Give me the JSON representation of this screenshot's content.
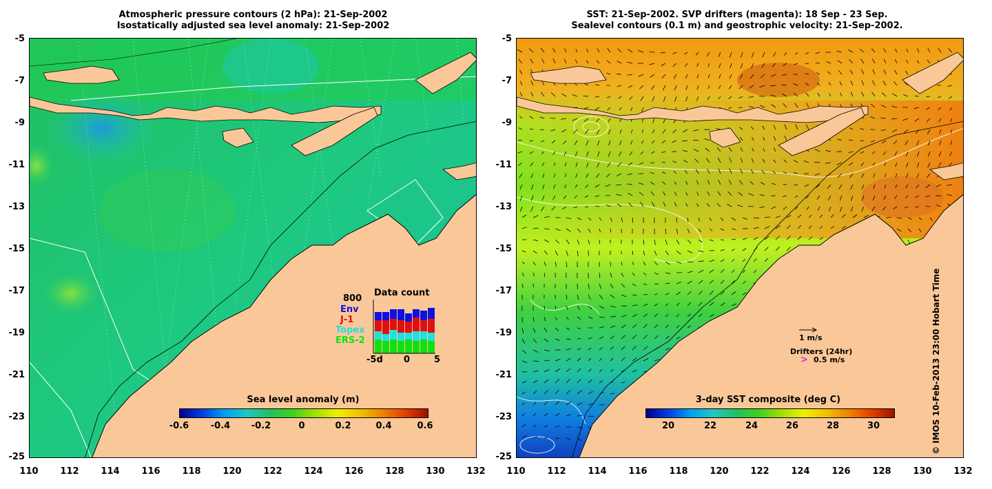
{
  "left": {
    "title_line1": "Atmospheric pressure contours (2 hPa): 21-Sep-2002",
    "title_line2": "Isostatically adjusted sea level anomaly: 21-Sep-2002",
    "colorbar_title": "Sea level anomaly (m)",
    "colorbar_ticks": [
      "-0.6",
      "-0.4",
      "-0.2",
      "0",
      "0.2",
      "0.4",
      "0.6"
    ],
    "data_count": {
      "title": "Data count",
      "max_label": "800",
      "satellites": [
        {
          "name": "Env",
          "color": "#1010e0"
        },
        {
          "name": "J-1",
          "color": "#e01010"
        },
        {
          "name": "Topex",
          "color": "#20e0e0"
        },
        {
          "name": "ERS-2",
          "color": "#10e010"
        }
      ],
      "x_ticks": [
        "-5d",
        "0",
        "5"
      ]
    }
  },
  "right": {
    "title_line1": "SST: 21-Sep-2002. SVP drifters (magenta): 18 Sep - 23 Sep.",
    "title_line2": "Sealevel contours (0.1 m) and geostrophic velocity: 21-Sep-2002.",
    "colorbar_title": "3-day SST composite (deg C)",
    "colorbar_ticks": [
      "20",
      "22",
      "24",
      "26",
      "28",
      "30"
    ],
    "velocity_scale_label": "1 m/s",
    "drifters_label": "Drifters (24hr)",
    "drifters_speed": "0.5 m/s",
    "drifters_marker": ">"
  },
  "y_ticks": [
    "-5",
    "-7",
    "-9",
    "-11",
    "-13",
    "-15",
    "-17",
    "-19",
    "-21",
    "-23",
    "-25"
  ],
  "x_ticks": [
    "110",
    "112",
    "114",
    "116",
    "118",
    "120",
    "122",
    "124",
    "126",
    "128",
    "130",
    "132"
  ],
  "copyright": "© IMOS 10-Feb-2013 23:00 Hobart Time",
  "colors": {
    "land": "#fac898",
    "sea_left": "#1ec878",
    "sea_right_warm": "#f0a020"
  }
}
